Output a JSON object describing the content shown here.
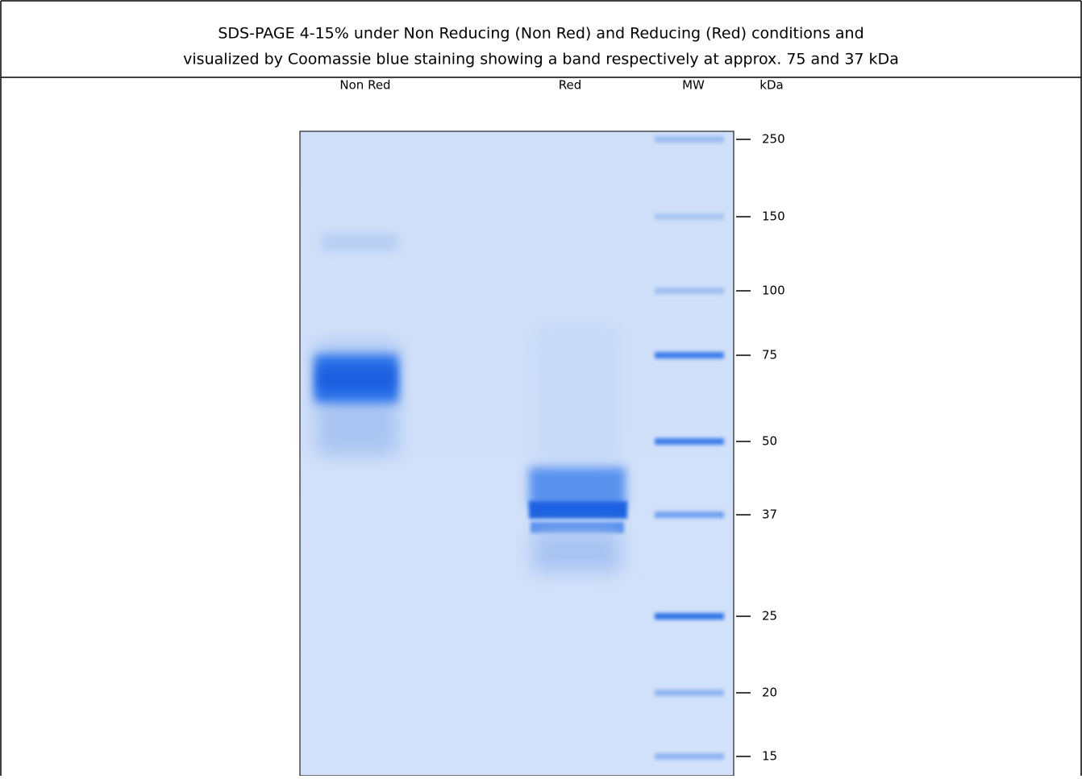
{
  "header": {
    "lines": [
      "SDS-PAGE 4-15% under Non Reducing (Non Red) and Reducing (Red) conditions and",
      "visualized by Coomassie blue staining showing a band respectively at approx. 75 and 37 kDa"
    ]
  },
  "lanes": [
    "Non Red",
    "Red",
    "MW"
  ],
  "unit_label": "kDa",
  "markers": [
    250,
    150,
    100,
    75,
    50,
    37,
    25,
    20,
    15
  ]
}
